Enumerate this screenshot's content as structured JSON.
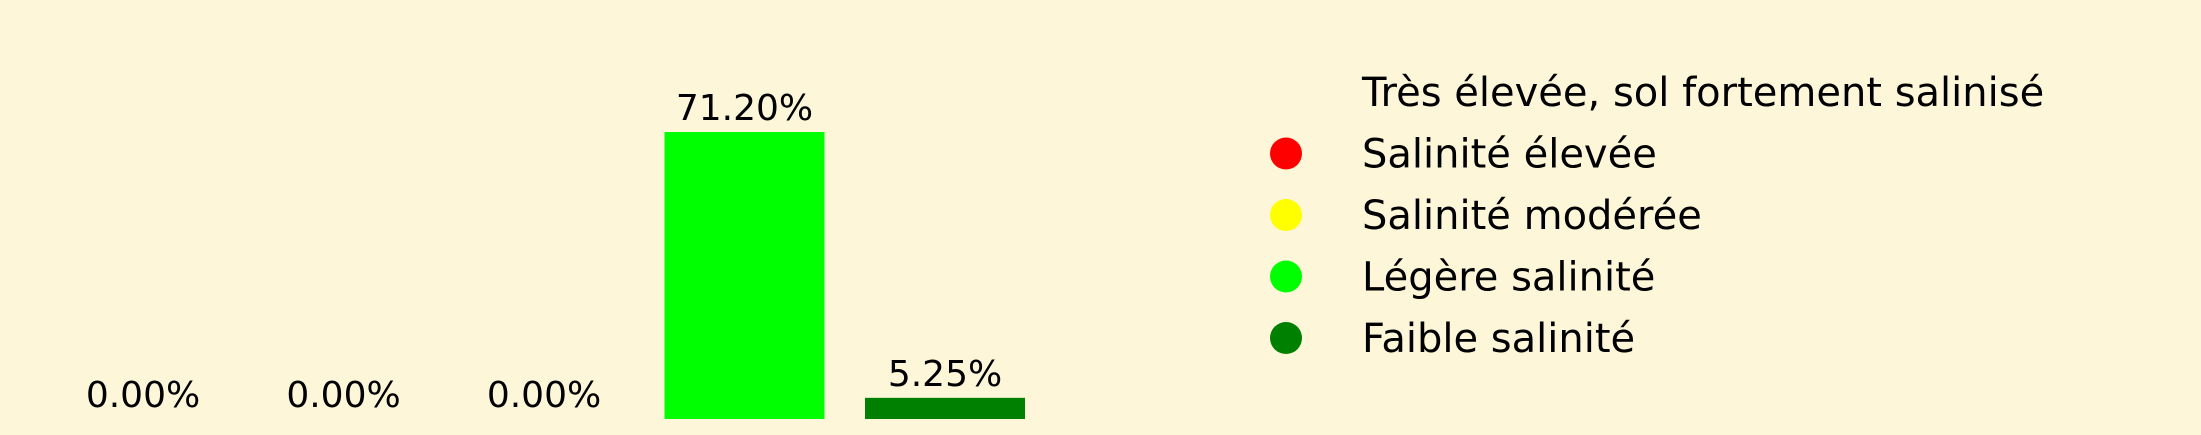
{
  "chart_data": {
    "type": "bar",
    "categories": [
      "Très élevée, sol fortement salinisé",
      "Salinité élevée",
      "Salinité modérée",
      "Légère salinité",
      "Faible salinité"
    ],
    "values": [
      0.0,
      0.0,
      0.0,
      71.2,
      5.25
    ],
    "value_labels": [
      "0.00%",
      "0.00%",
      "0.00%",
      "71.20%",
      "5.25%"
    ],
    "colors": [
      "#8b0000",
      "#ff0000",
      "#ffff00",
      "#00ff00",
      "#008000"
    ],
    "legend": {
      "placement": "right",
      "entries": [
        {
          "label": "Très élevée, sol fortement salinisé",
          "color": "#8b0000"
        },
        {
          "label": "Salinité élevée",
          "color": "#ff0000"
        },
        {
          "label": "Salinité modérée",
          "color": "#ffff00"
        },
        {
          "label": "Légère salinité",
          "color": "#00ff00"
        },
        {
          "label": "Faible salinité",
          "color": "#008000"
        }
      ]
    },
    "ylim": [
      0,
      100
    ],
    "grid": false,
    "axes_visible": false
  }
}
